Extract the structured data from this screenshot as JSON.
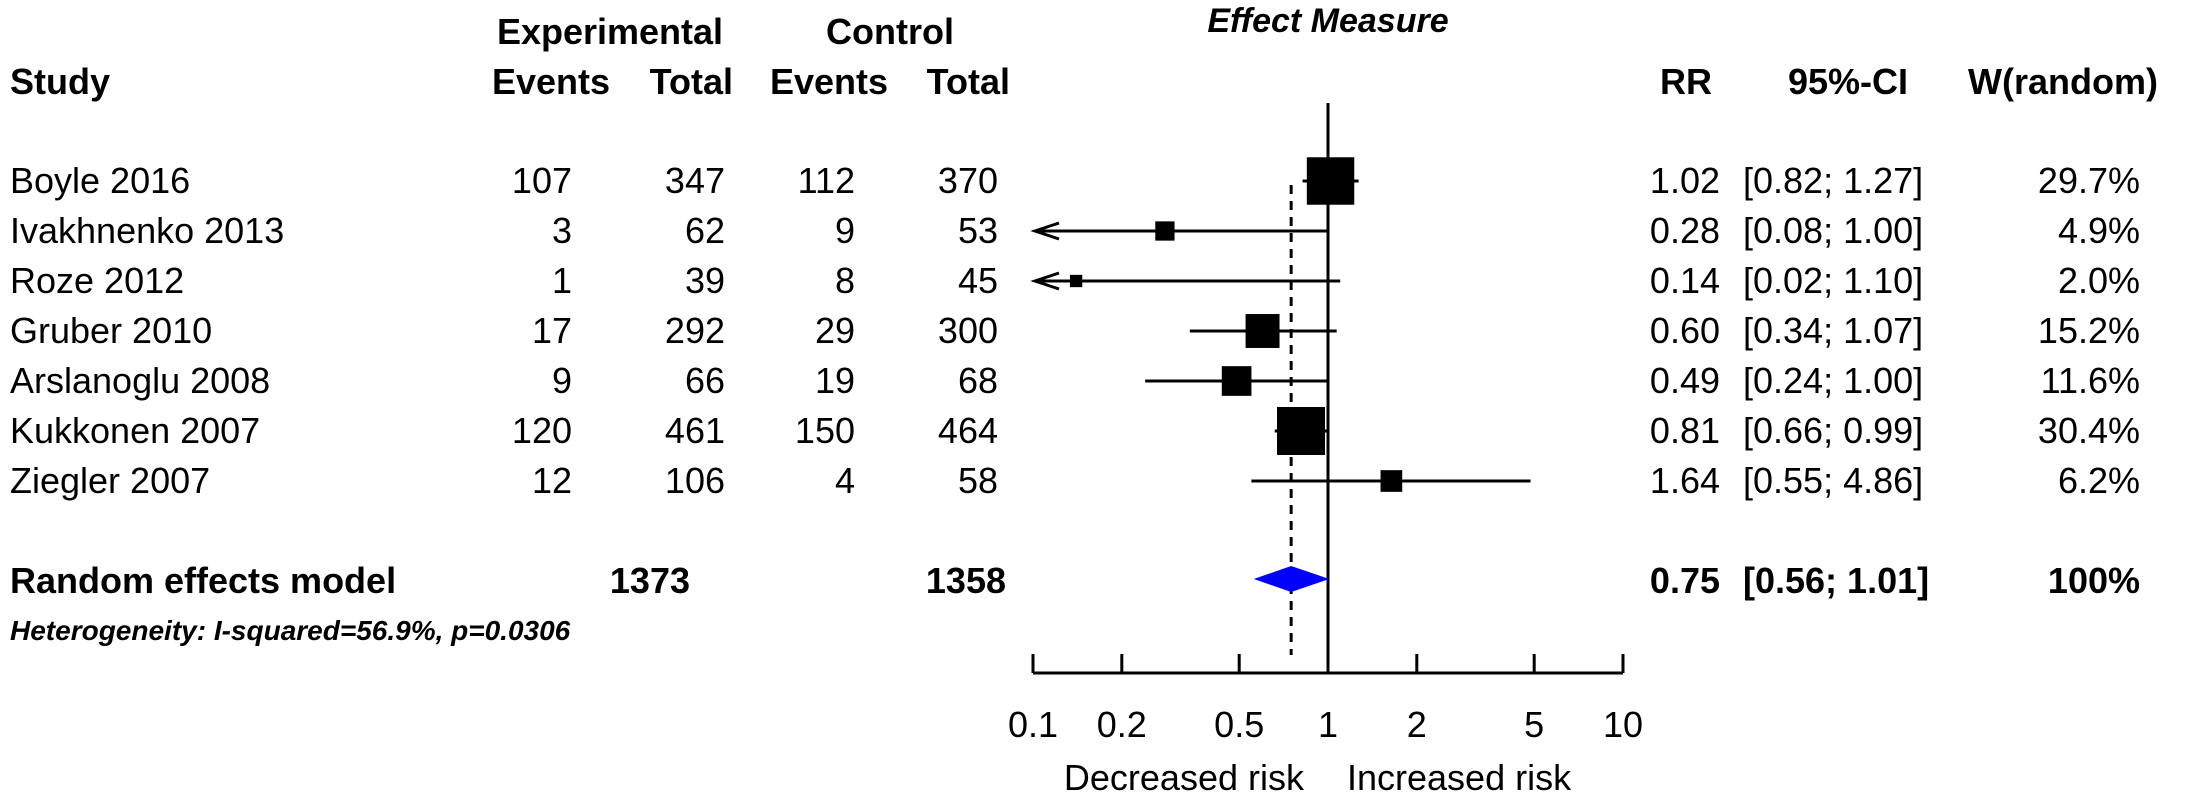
{
  "chart_data": {
    "type": "forest",
    "title": "Effect Measure",
    "group_headers": {
      "experimental": "Experimental",
      "control": "Control"
    },
    "columns": {
      "study": "Study",
      "exp_events": "Events",
      "exp_total": "Total",
      "ctl_events": "Events",
      "ctl_total": "Total",
      "rr": "RR",
      "ci": "95%-CI",
      "weight": "W(random)"
    },
    "studies": [
      {
        "name": "Boyle 2016",
        "exp_events": "107",
        "exp_total": "347",
        "ctl_events": "112",
        "ctl_total": "370",
        "rr": 1.02,
        "lower": 0.82,
        "upper": 1.27,
        "rr_text": "1.02",
        "ci_text": "[0.82; 1.27]",
        "weight_text": "29.7%",
        "weight": 29.7
      },
      {
        "name": "Ivakhnenko 2013",
        "exp_events": "3",
        "exp_total": "62",
        "ctl_events": "9",
        "ctl_total": "53",
        "rr": 0.28,
        "lower": 0.08,
        "upper": 1.0,
        "rr_text": "0.28",
        "ci_text": "[0.08; 1.00]",
        "weight_text": "4.9%",
        "weight": 4.9
      },
      {
        "name": "Roze 2012",
        "exp_events": "1",
        "exp_total": "39",
        "ctl_events": "8",
        "ctl_total": "45",
        "rr": 0.14,
        "lower": 0.02,
        "upper": 1.1,
        "rr_text": "0.14",
        "ci_text": "[0.02; 1.10]",
        "weight_text": "2.0%",
        "weight": 2.0
      },
      {
        "name": "Gruber 2010",
        "exp_events": "17",
        "exp_total": "292",
        "ctl_events": "29",
        "ctl_total": "300",
        "rr": 0.6,
        "lower": 0.34,
        "upper": 1.07,
        "rr_text": "0.60",
        "ci_text": "[0.34; 1.07]",
        "weight_text": "15.2%",
        "weight": 15.2
      },
      {
        "name": "Arslanoglu 2008",
        "exp_events": "9",
        "exp_total": "66",
        "ctl_events": "19",
        "ctl_total": "68",
        "rr": 0.49,
        "lower": 0.24,
        "upper": 1.0,
        "rr_text": "0.49",
        "ci_text": "[0.24; 1.00]",
        "weight_text": "11.6%",
        "weight": 11.6
      },
      {
        "name": "Kukkonen 2007",
        "exp_events": "120",
        "exp_total": "461",
        "ctl_events": "150",
        "ctl_total": "464",
        "rr": 0.81,
        "lower": 0.66,
        "upper": 0.99,
        "rr_text": "0.81",
        "ci_text": "[0.66; 0.99]",
        "weight_text": "30.4%",
        "weight": 30.4
      },
      {
        "name": "Ziegler 2007",
        "exp_events": "12",
        "exp_total": "106",
        "ctl_events": "4",
        "ctl_total": "58",
        "rr": 1.64,
        "lower": 0.55,
        "upper": 4.86,
        "rr_text": "1.64",
        "ci_text": "[0.55; 4.86]",
        "weight_text": "6.2%",
        "weight": 6.2
      }
    ],
    "pooled": {
      "name": "Random effects model",
      "exp_total": "1373",
      "ctl_total": "1358",
      "rr": 0.75,
      "lower": 0.56,
      "upper": 1.01,
      "rr_text": "0.75",
      "ci_text": "[0.56; 1.01]",
      "weight_text": "100%",
      "color": "#0000ff"
    },
    "heterogeneity": "Heterogeneity: I-squared=56.9%, p=0.0306",
    "x_scale": "log",
    "xlim": [
      0.1,
      10
    ],
    "x_ticks": [
      0.1,
      0.2,
      0.5,
      1,
      2,
      5,
      10
    ],
    "x_tick_labels": [
      "0.1",
      "0.2",
      "0.5",
      "1",
      "2",
      "5",
      "10"
    ],
    "reference_line": 1,
    "pooled_line": 0.75,
    "xlabel_left": "Decreased risk",
    "xlabel_right": "Increased risk",
    "colors": {
      "marker": "#000000",
      "diamond": "#0000ff"
    }
  }
}
